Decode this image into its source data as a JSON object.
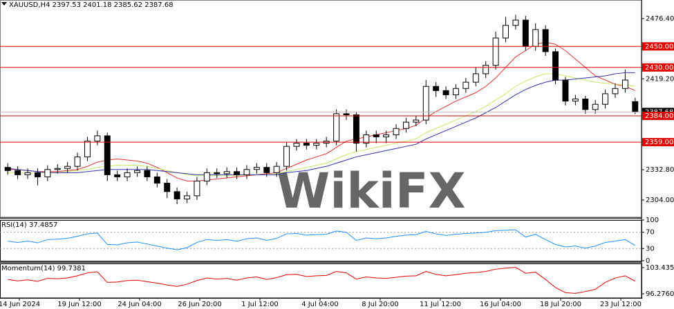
{
  "chart_data": [
    {
      "type": "candlestick",
      "title": "XAUUSD,H4  2397.53 2401.18 2385.62 2387.68",
      "watermark": "WikiFX",
      "open": [
        2335,
        2332,
        2328,
        2330,
        2326,
        2333,
        2334,
        2336,
        2345,
        2360,
        2365,
        2328,
        2326,
        2330,
        2332,
        2326,
        2320,
        2312,
        2305,
        2308,
        2322,
        2330,
        2329,
        2331,
        2328,
        2333,
        2335,
        2330,
        2336,
        2355,
        2358,
        2356,
        2358,
        2360,
        2386,
        2385,
        2358,
        2366,
        2364,
        2366,
        2372,
        2378,
        2380,
        2412,
        2408,
        2404,
        2410,
        2416,
        2424,
        2432,
        2458,
        2470,
        2475,
        2450,
        2466,
        2445,
        2418,
        2398,
        2400,
        2390,
        2395,
        2405,
        2410,
        2397.53
      ],
      "high": [
        2339,
        2336,
        2334,
        2334,
        2337,
        2338,
        2340,
        2349,
        2364,
        2370,
        2368,
        2332,
        2334,
        2336,
        2336,
        2330,
        2324,
        2316,
        2312,
        2326,
        2334,
        2334,
        2335,
        2335,
        2337,
        2339,
        2339,
        2340,
        2359,
        2362,
        2362,
        2362,
        2364,
        2390,
        2390,
        2388,
        2370,
        2370,
        2370,
        2376,
        2382,
        2384,
        2418,
        2416,
        2412,
        2414,
        2420,
        2430,
        2436,
        2464,
        2478,
        2480,
        2479,
        2472,
        2470,
        2448,
        2421,
        2404,
        2403,
        2399,
        2409,
        2415,
        2428,
        2401.18
      ],
      "low": [
        2328,
        2324,
        2324,
        2318,
        2322,
        2329,
        2330,
        2332,
        2341,
        2356,
        2322,
        2322,
        2322,
        2326,
        2322,
        2316,
        2306,
        2300,
        2301,
        2304,
        2318,
        2325,
        2325,
        2324,
        2324,
        2329,
        2326,
        2326,
        2332,
        2351,
        2352,
        2352,
        2354,
        2356,
        2380,
        2350,
        2354,
        2358,
        2358,
        2362,
        2368,
        2374,
        2376,
        2402,
        2400,
        2400,
        2406,
        2412,
        2420,
        2428,
        2454,
        2466,
        2446,
        2446,
        2441,
        2414,
        2394,
        2394,
        2386,
        2386,
        2391,
        2401,
        2406,
        2385.62
      ],
      "close": [
        2332,
        2328,
        2330,
        2326,
        2333,
        2334,
        2336,
        2345,
        2360,
        2365,
        2328,
        2326,
        2330,
        2332,
        2326,
        2320,
        2312,
        2305,
        2308,
        2322,
        2330,
        2329,
        2331,
        2328,
        2333,
        2335,
        2330,
        2336,
        2355,
        2358,
        2356,
        2358,
        2360,
        2386,
        2385,
        2358,
        2366,
        2364,
        2366,
        2372,
        2378,
        2380,
        2412,
        2408,
        2404,
        2410,
        2416,
        2424,
        2432,
        2458,
        2470,
        2475,
        2450,
        2466,
        2445,
        2418,
        2398,
        2400,
        2390,
        2395,
        2405,
        2410,
        2418,
        2387.68
      ],
      "lines": [
        {
          "color": "#e03030",
          "values": [
            2333,
            2333,
            2332,
            2331,
            2331,
            2331,
            2332,
            2333,
            2336,
            2340,
            2342,
            2343,
            2342,
            2341,
            2339,
            2335,
            2330,
            2325,
            2322,
            2322,
            2323,
            2324,
            2325,
            2326,
            2327,
            2328,
            2329,
            2330,
            2334,
            2338,
            2342,
            2345,
            2348,
            2354,
            2360,
            2362,
            2364,
            2366,
            2368,
            2370,
            2372,
            2375,
            2382,
            2388,
            2393,
            2398,
            2402,
            2406,
            2412,
            2420,
            2430,
            2440,
            2446,
            2452,
            2454,
            2452,
            2446,
            2438,
            2430,
            2422,
            2418,
            2414,
            2412,
            2408
          ]
        },
        {
          "color": "#c8e66a",
          "values": [
            2330,
            2330,
            2330,
            2330,
            2330,
            2330,
            2331,
            2332,
            2333,
            2335,
            2336,
            2337,
            2337,
            2337,
            2336,
            2334,
            2332,
            2330,
            2328,
            2327,
            2327,
            2327,
            2327,
            2327,
            2328,
            2328,
            2328,
            2329,
            2331,
            2333,
            2335,
            2337,
            2339,
            2343,
            2347,
            2350,
            2352,
            2354,
            2356,
            2358,
            2360,
            2362,
            2368,
            2372,
            2376,
            2380,
            2384,
            2388,
            2393,
            2399,
            2405,
            2412,
            2417,
            2421,
            2424,
            2424,
            2422,
            2420,
            2418,
            2416,
            2415,
            2414,
            2414,
            2412
          ]
        },
        {
          "color": "#3030b0",
          "values": [
            2334,
            2333,
            2332,
            2331,
            2330,
            2330,
            2330,
            2330,
            2331,
            2332,
            2333,
            2333,
            2333,
            2333,
            2333,
            2332,
            2331,
            2330,
            2329,
            2328,
            2328,
            2328,
            2328,
            2328,
            2328,
            2328,
            2328,
            2328,
            2330,
            2331,
            2332,
            2334,
            2336,
            2339,
            2342,
            2345,
            2347,
            2349,
            2351,
            2353,
            2355,
            2357,
            2362,
            2366,
            2370,
            2374,
            2378,
            2382,
            2387,
            2392,
            2398,
            2404,
            2409,
            2413,
            2416,
            2418,
            2418,
            2419,
            2420,
            2421,
            2422,
            2424,
            2425,
            2425
          ]
        }
      ],
      "levels": [
        {
          "value": 2450,
          "label": "2450.00"
        },
        {
          "value": 2430,
          "label": "2430.00"
        },
        {
          "value": 2384,
          "label": "2384.00"
        },
        {
          "value": 2359,
          "label": "2359.00"
        }
      ],
      "level_color": "#e00000",
      "current": {
        "value": 2387.68,
        "label": "2387.68"
      },
      "ylim": [
        2287.6,
        2494.1
      ],
      "yticks": [
        {
          "value": 2476.4,
          "label": "2476.40"
        },
        {
          "value": 2419.2,
          "label": "2419.20"
        },
        {
          "value": 2332.8,
          "label": "2332.80"
        },
        {
          "value": 2304,
          "label": "2304.00"
        }
      ],
      "x_labels": [
        "14 Jun 2024",
        "19 Jun 12:00",
        "24 Jun 04:00",
        "26 Jun 20:00",
        "1 Jul 12:00",
        "4 Jul 04:00",
        "8 Jul 20:00",
        "11 Jul 12:00",
        "16 Jul 04:00",
        "18 Jul 20:00",
        "23 Jul 12:00"
      ]
    },
    {
      "type": "line",
      "title": "RSI(14) 37.4857",
      "color": "#1e90ff",
      "values": [
        48,
        45,
        48,
        44,
        52,
        53,
        55,
        60,
        66,
        68,
        40,
        39,
        44,
        46,
        41,
        36,
        31,
        27,
        32,
        45,
        52,
        50,
        52,
        48,
        54,
        56,
        50,
        55,
        66,
        67,
        63,
        64,
        65,
        73,
        70,
        50,
        56,
        54,
        56,
        60,
        63,
        64,
        72,
        66,
        62,
        65,
        67,
        68,
        70,
        74,
        75,
        76,
        58,
        65,
        52,
        40,
        34,
        36,
        31,
        36,
        45,
        48,
        52,
        37.4857
      ],
      "ylim": [
        0,
        100
      ],
      "yticks": [
        100,
        70,
        30,
        0
      ],
      "levels": [
        70,
        30
      ]
    },
    {
      "type": "line",
      "title": "Momentum(14) 99.7381",
      "color": "#e00000",
      "values": [
        100.2,
        99.8,
        100.1,
        99.7,
        100.5,
        100.4,
        100.6,
        101.2,
        102.0,
        102.3,
        99.4,
        99.5,
        99.9,
        100.0,
        99.6,
        99.2,
        98.7,
        98.3,
        98.9,
        99.9,
        100.6,
        100.3,
        100.5,
        100.0,
        100.6,
        100.9,
        100.2,
        100.7,
        101.5,
        101.6,
        101.0,
        101.2,
        101.3,
        102.4,
        102.0,
        100.3,
        100.9,
        100.6,
        100.5,
        100.8,
        101.1,
        101.2,
        102.4,
        101.6,
        101.2,
        101.5,
        101.9,
        102.1,
        102.4,
        103.0,
        103.3,
        103.5,
        101.9,
        102.2,
        100.2,
        98.0,
        96.6,
        96.4,
        96.9,
        97.5,
        99.4,
        100.6,
        101.2,
        99.7381
      ],
      "ylim": [
        95.146,
        104.565
      ],
      "yticks": [
        103.4354,
        {
          "value": 96.276,
          "label": "96.2760"
        }
      ]
    }
  ]
}
